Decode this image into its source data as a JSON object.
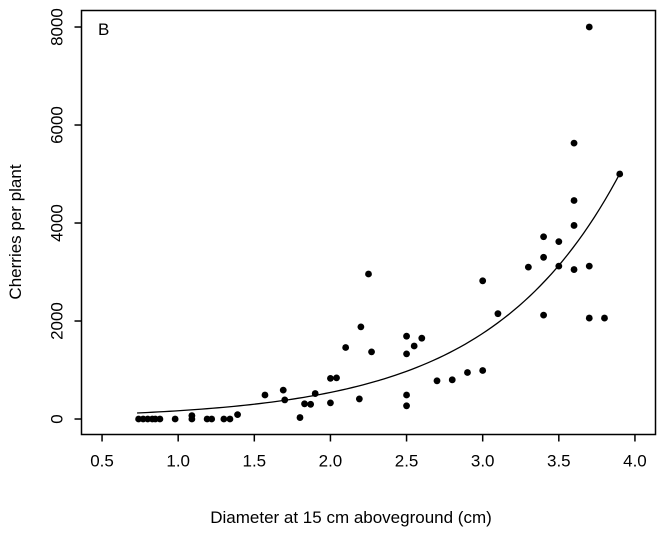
{
  "figure": {
    "background_color": "#ffffff",
    "foreground_color": "#000000"
  },
  "chart_data": {
    "type": "scatter",
    "panel_label": "B",
    "title": "",
    "xlabel": "Diameter at 15 cm aboveground (cm)",
    "ylabel": "Cherries per plant",
    "xlim": [
      0.365,
      4.135
    ],
    "ylim": [
      -316,
      8337
    ],
    "xticks": [
      0.5,
      1.0,
      1.5,
      2.0,
      2.5,
      3.0,
      3.5,
      4.0
    ],
    "xtick_labels": [
      "0.5",
      "1.0",
      "1.5",
      "2.0",
      "2.5",
      "3.0",
      "3.5",
      "4.0"
    ],
    "yticks": [
      0,
      2000,
      4000,
      6000,
      8000
    ],
    "ytick_labels": [
      "0",
      "2000",
      "4000",
      "6000",
      "8000"
    ],
    "grid": false,
    "legend": false,
    "marker": "filled-black-circle",
    "point_color": "#000000",
    "curve_color": "#000000",
    "points": [
      [
        0.74,
        0
      ],
      [
        0.77,
        0
      ],
      [
        0.8,
        0
      ],
      [
        0.83,
        0
      ],
      [
        0.85,
        0
      ],
      [
        0.88,
        0
      ],
      [
        0.98,
        0
      ],
      [
        1.09,
        70
      ],
      [
        1.09,
        0
      ],
      [
        1.19,
        0
      ],
      [
        1.22,
        0
      ],
      [
        1.3,
        0
      ],
      [
        1.34,
        0
      ],
      [
        1.39,
        90
      ],
      [
        1.57,
        490
      ],
      [
        1.69,
        590
      ],
      [
        1.7,
        390
      ],
      [
        1.8,
        30
      ],
      [
        1.83,
        310
      ],
      [
        1.87,
        300
      ],
      [
        1.9,
        520
      ],
      [
        2.0,
        330
      ],
      [
        2.0,
        830
      ],
      [
        2.04,
        840
      ],
      [
        2.1,
        1460
      ],
      [
        2.19,
        410
      ],
      [
        2.2,
        1880
      ],
      [
        2.25,
        2960
      ],
      [
        2.27,
        1370
      ],
      [
        2.5,
        270
      ],
      [
        2.5,
        490
      ],
      [
        2.5,
        1330
      ],
      [
        2.5,
        1690
      ],
      [
        2.55,
        1490
      ],
      [
        2.6,
        1650
      ],
      [
        2.7,
        780
      ],
      [
        2.8,
        800
      ],
      [
        2.9,
        950
      ],
      [
        3.0,
        990
      ],
      [
        3.0,
        2820
      ],
      [
        3.1,
        2150
      ],
      [
        3.3,
        3100
      ],
      [
        3.4,
        2120
      ],
      [
        3.4,
        3300
      ],
      [
        3.4,
        3720
      ],
      [
        3.5,
        3120
      ],
      [
        3.5,
        3620
      ],
      [
        3.6,
        3050
      ],
      [
        3.6,
        3950
      ],
      [
        3.6,
        4460
      ],
      [
        3.6,
        5630
      ],
      [
        3.7,
        2060
      ],
      [
        3.7,
        3120
      ],
      [
        3.7,
        8000
      ],
      [
        3.8,
        2060
      ],
      [
        3.9,
        5000
      ]
    ],
    "fit_curve": {
      "type": "exponential",
      "formula": "y = a * exp(b * x)",
      "a": 52.4,
      "b": 1.169,
      "x_start": 0.73,
      "x_end": 3.91
    }
  }
}
